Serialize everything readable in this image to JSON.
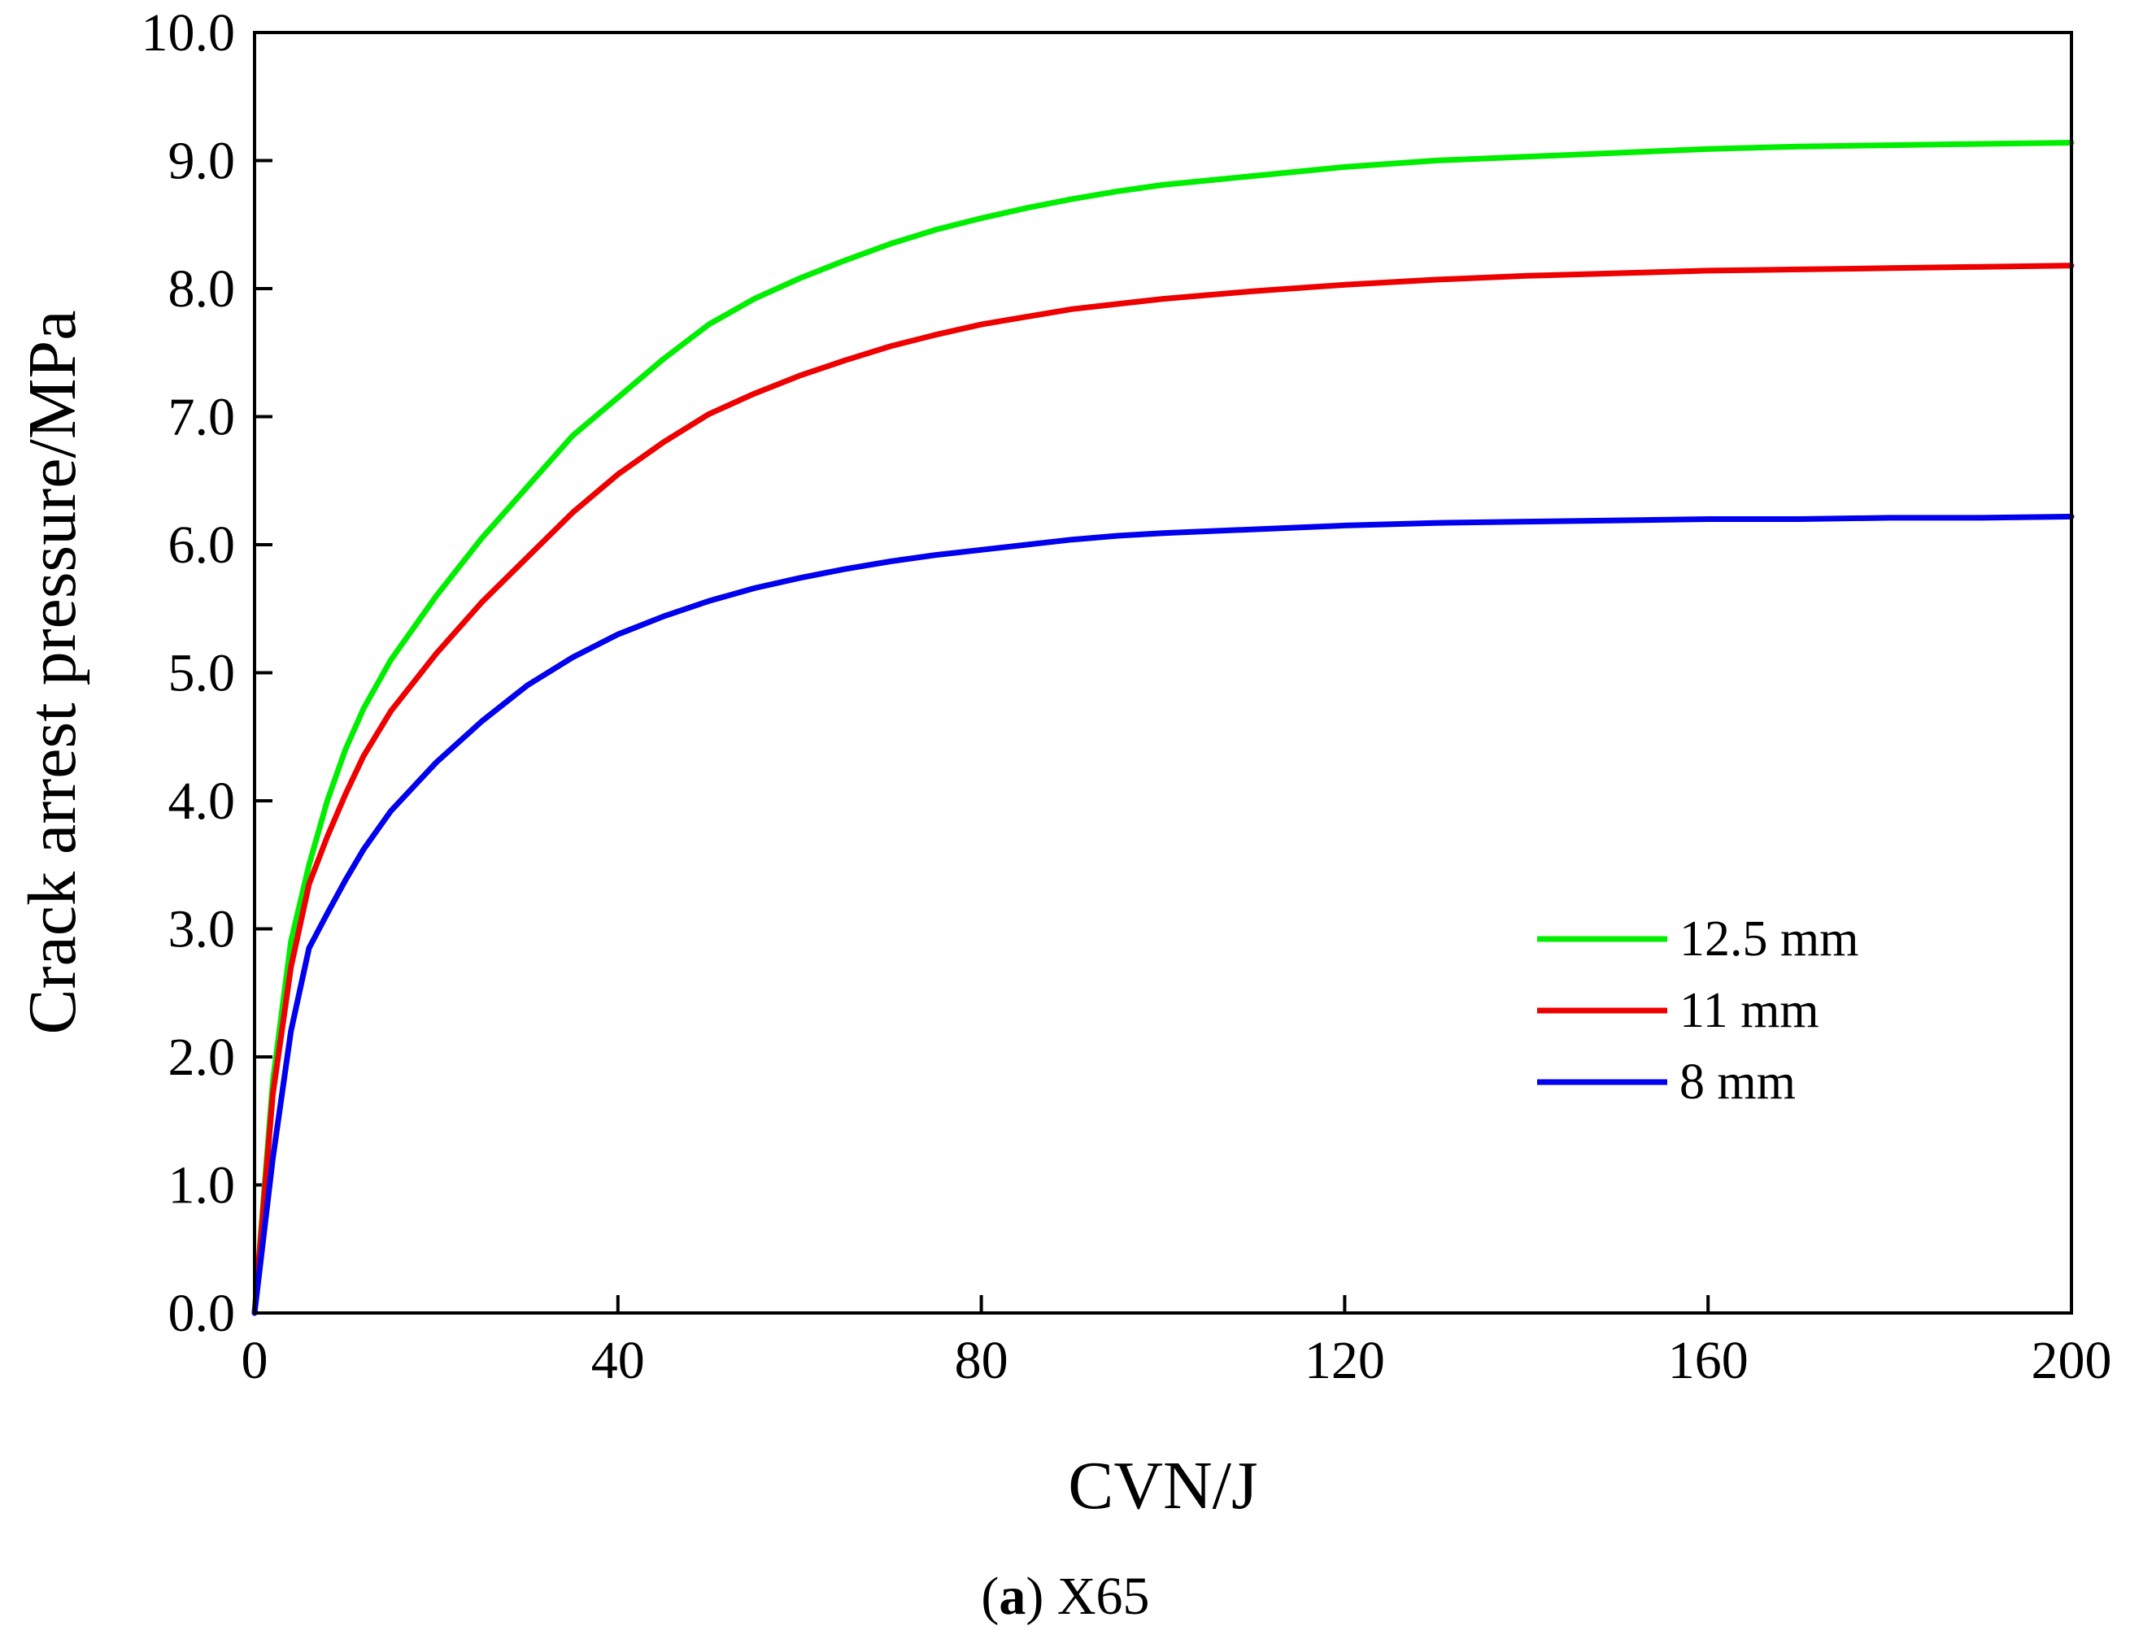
{
  "chart_data": {
    "type": "line",
    "title": "",
    "xlabel": "CVN/J",
    "ylabel": "Crack arrest pressure/MPa",
    "xlim": [
      0,
      200
    ],
    "ylim": [
      0,
      10
    ],
    "x_ticks": [
      0,
      40,
      80,
      120,
      160,
      200
    ],
    "x_tick_labels": [
      "0",
      "40",
      "80",
      "120",
      "160",
      "200"
    ],
    "y_ticks": [
      0,
      1,
      2,
      3,
      4,
      5,
      6,
      7,
      8,
      9,
      10
    ],
    "y_tick_labels": [
      "0.0",
      "1.0",
      "2.0",
      "3.0",
      "4.0",
      "5.0",
      "6.0",
      "7.0",
      "8.0",
      "9.0",
      "10.0"
    ],
    "grid": false,
    "legend_position": "lower-right",
    "series": [
      {
        "name": "12.5 mm",
        "color": "#00ee00",
        "points": [
          [
            0,
            0
          ],
          [
            2,
            1.8
          ],
          [
            4,
            2.9
          ],
          [
            6,
            3.5
          ],
          [
            8,
            4.0
          ],
          [
            10,
            4.4
          ],
          [
            12,
            4.72
          ],
          [
            15,
            5.1
          ],
          [
            20,
            5.6
          ],
          [
            25,
            6.05
          ],
          [
            30,
            6.45
          ],
          [
            35,
            6.85
          ],
          [
            40,
            7.15
          ],
          [
            45,
            7.45
          ],
          [
            50,
            7.72
          ],
          [
            55,
            7.92
          ],
          [
            60,
            8.08
          ],
          [
            65,
            8.22
          ],
          [
            70,
            8.35
          ],
          [
            75,
            8.46
          ],
          [
            80,
            8.55
          ],
          [
            85,
            8.63
          ],
          [
            90,
            8.7
          ],
          [
            95,
            8.76
          ],
          [
            100,
            8.81
          ],
          [
            110,
            8.88
          ],
          [
            120,
            8.95
          ],
          [
            130,
            9.0
          ],
          [
            140,
            9.03
          ],
          [
            150,
            9.06
          ],
          [
            160,
            9.09
          ],
          [
            170,
            9.11
          ],
          [
            180,
            9.12
          ],
          [
            190,
            9.13
          ],
          [
            200,
            9.14
          ]
        ]
      },
      {
        "name": "11 mm",
        "color": "#ee0000",
        "points": [
          [
            0,
            0
          ],
          [
            2,
            1.7
          ],
          [
            4,
            2.7
          ],
          [
            6,
            3.35
          ],
          [
            8,
            3.72
          ],
          [
            10,
            4.05
          ],
          [
            12,
            4.35
          ],
          [
            15,
            4.7
          ],
          [
            20,
            5.15
          ],
          [
            25,
            5.55
          ],
          [
            30,
            5.9
          ],
          [
            35,
            6.25
          ],
          [
            40,
            6.55
          ],
          [
            45,
            6.8
          ],
          [
            50,
            7.02
          ],
          [
            55,
            7.18
          ],
          [
            60,
            7.32
          ],
          [
            65,
            7.44
          ],
          [
            70,
            7.55
          ],
          [
            75,
            7.64
          ],
          [
            80,
            7.72
          ],
          [
            85,
            7.78
          ],
          [
            90,
            7.84
          ],
          [
            95,
            7.88
          ],
          [
            100,
            7.92
          ],
          [
            110,
            7.98
          ],
          [
            120,
            8.03
          ],
          [
            130,
            8.07
          ],
          [
            140,
            8.1
          ],
          [
            150,
            8.12
          ],
          [
            160,
            8.14
          ],
          [
            170,
            8.15
          ],
          [
            180,
            8.16
          ],
          [
            190,
            8.17
          ],
          [
            200,
            8.18
          ]
        ]
      },
      {
        "name": "8 mm",
        "color": "#0000ee",
        "points": [
          [
            0,
            0
          ],
          [
            2,
            1.2
          ],
          [
            4,
            2.2
          ],
          [
            6,
            2.85
          ],
          [
            8,
            3.12
          ],
          [
            10,
            3.38
          ],
          [
            12,
            3.62
          ],
          [
            15,
            3.92
          ],
          [
            20,
            4.3
          ],
          [
            25,
            4.62
          ],
          [
            30,
            4.9
          ],
          [
            35,
            5.12
          ],
          [
            40,
            5.3
          ],
          [
            45,
            5.44
          ],
          [
            50,
            5.56
          ],
          [
            55,
            5.66
          ],
          [
            60,
            5.74
          ],
          [
            65,
            5.81
          ],
          [
            70,
            5.87
          ],
          [
            75,
            5.92
          ],
          [
            80,
            5.96
          ],
          [
            85,
            6.0
          ],
          [
            90,
            6.04
          ],
          [
            95,
            6.07
          ],
          [
            100,
            6.09
          ],
          [
            110,
            6.12
          ],
          [
            120,
            6.15
          ],
          [
            130,
            6.17
          ],
          [
            140,
            6.18
          ],
          [
            150,
            6.19
          ],
          [
            160,
            6.2
          ],
          [
            170,
            6.2
          ],
          [
            180,
            6.21
          ],
          [
            190,
            6.21
          ],
          [
            200,
            6.22
          ]
        ]
      }
    ],
    "caption_prefix": "a",
    "caption_text": "X65"
  }
}
